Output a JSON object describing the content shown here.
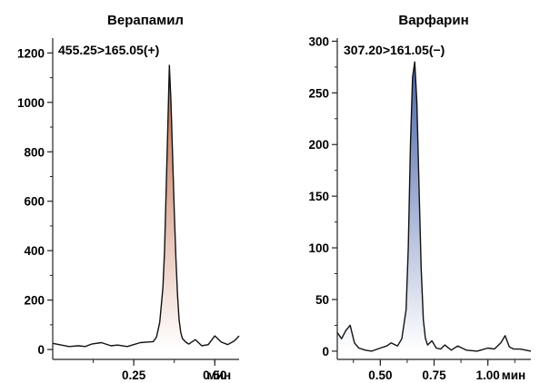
{
  "chart_data": [
    {
      "type": "line",
      "title": "Верапамил",
      "annotation": "455.25>165.05(+)",
      "xlim": [
        0.0,
        0.575
      ],
      "ylim": [
        -40,
        1260
      ],
      "xticks": [
        0.25,
        0.5
      ],
      "xtick_labels": [
        "0.25",
        "0.50"
      ],
      "yticks": [
        0,
        200,
        400,
        600,
        800,
        1000,
        1200
      ],
      "ytick_labels": [
        "0",
        "200",
        "400",
        "600",
        "800",
        "1000",
        "1200"
      ],
      "x_unit_label": "мин",
      "fill_colors": [
        "#c06a48",
        "#ffffff"
      ],
      "series": [
        {
          "x": [
            0.0,
            0.02,
            0.05,
            0.08,
            0.1,
            0.12,
            0.15,
            0.18,
            0.2,
            0.23,
            0.25,
            0.27,
            0.29,
            0.31,
            0.32,
            0.33,
            0.34,
            0.345,
            0.35,
            0.355,
            0.36,
            0.365,
            0.37,
            0.375,
            0.38,
            0.385,
            0.39,
            0.395,
            0.4,
            0.41,
            0.42,
            0.44,
            0.46,
            0.48,
            0.5,
            0.52,
            0.54,
            0.56,
            0.575
          ],
          "y": [
            25,
            20,
            12,
            15,
            12,
            22,
            28,
            15,
            18,
            12,
            20,
            28,
            30,
            32,
            50,
            110,
            250,
            400,
            650,
            900,
            1150,
            1000,
            780,
            560,
            370,
            220,
            120,
            70,
            45,
            30,
            22,
            40,
            15,
            20,
            55,
            30,
            20,
            35,
            55
          ]
        }
      ]
    },
    {
      "type": "line",
      "title": "Варфарин",
      "annotation": "307.20>161.05(−)",
      "xlim": [
        0.3,
        1.2
      ],
      "ylim": [
        -8,
        303
      ],
      "xticks": [
        0.5,
        0.75,
        1.0
      ],
      "xtick_labels": [
        "0.50",
        "0.75",
        "1.00"
      ],
      "yticks": [
        0,
        50,
        100,
        150,
        200,
        250,
        300
      ],
      "ytick_labels": [
        "0",
        "50",
        "100",
        "150",
        "200",
        "250",
        "300"
      ],
      "x_unit_label": "мин",
      "fill_colors": [
        "#4a64a8",
        "#ffffff"
      ],
      "series": [
        {
          "x": [
            0.3,
            0.32,
            0.34,
            0.36,
            0.38,
            0.4,
            0.43,
            0.46,
            0.5,
            0.53,
            0.55,
            0.58,
            0.6,
            0.62,
            0.63,
            0.64,
            0.65,
            0.66,
            0.67,
            0.68,
            0.69,
            0.7,
            0.71,
            0.72,
            0.74,
            0.76,
            0.78,
            0.8,
            0.83,
            0.86,
            0.9,
            0.95,
            1.0,
            1.03,
            1.06,
            1.08,
            1.1,
            1.12,
            1.15,
            1.2
          ],
          "y": [
            18,
            12,
            20,
            25,
            8,
            3,
            1,
            0,
            3,
            5,
            8,
            5,
            12,
            40,
            100,
            200,
            265,
            280,
            240,
            160,
            80,
            30,
            12,
            6,
            10,
            3,
            2,
            6,
            1,
            5,
            1,
            0,
            3,
            2,
            8,
            15,
            4,
            2,
            2,
            0
          ]
        }
      ]
    }
  ]
}
